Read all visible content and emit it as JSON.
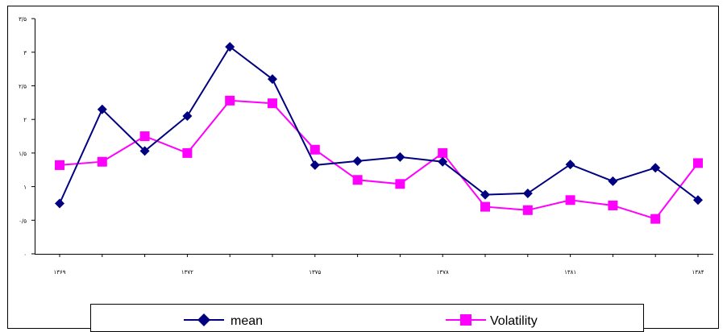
{
  "chart_data": {
    "type": "line",
    "x": [
      "۱۳۶۹",
      "۱۳۷۰",
      "۱۳۷۱",
      "۱۳۷۲",
      "۱۳۷۳",
      "۱۳۷۴",
      "۱۳۷۵",
      "۱۳۷۶",
      "۱۳۷۷",
      "۱۳۷۸",
      "۱۳۷۹",
      "۱۳۸۰",
      "۱۳۸۱",
      "۱۳۸۲",
      "۱۳۸۳",
      "۱۳۸۴"
    ],
    "x_tick_labels": [
      "۱۳۶۹",
      "۱۳۷۲",
      "۱۳۷۵",
      "۱۳۷۸",
      "۱۳۸۱",
      "۱۳۸۴"
    ],
    "y_tick_labels": [
      "۰",
      "۰/۵",
      "۱",
      "۱/۵",
      "۲",
      "۲/۵",
      "۳",
      "۳/۵"
    ],
    "ylim": [
      0,
      3.5
    ],
    "grid": false,
    "legend_position": "bottom",
    "title": "",
    "xlabel": "",
    "ylabel": "",
    "series": [
      {
        "name": "mean",
        "color": "#000080",
        "marker": "diamond",
        "values": [
          0.75,
          2.15,
          1.53,
          2.05,
          3.08,
          2.6,
          1.32,
          1.38,
          1.44,
          1.37,
          0.88,
          0.9,
          1.33,
          1.08,
          1.28,
          0.8
        ]
      },
      {
        "name": "Volatility",
        "color": "#ff00ff",
        "marker": "square",
        "values": [
          1.32,
          1.37,
          1.75,
          1.5,
          2.28,
          2.24,
          1.55,
          1.1,
          1.04,
          1.5,
          0.7,
          0.65,
          0.8,
          0.72,
          0.52,
          1.35
        ]
      }
    ]
  }
}
